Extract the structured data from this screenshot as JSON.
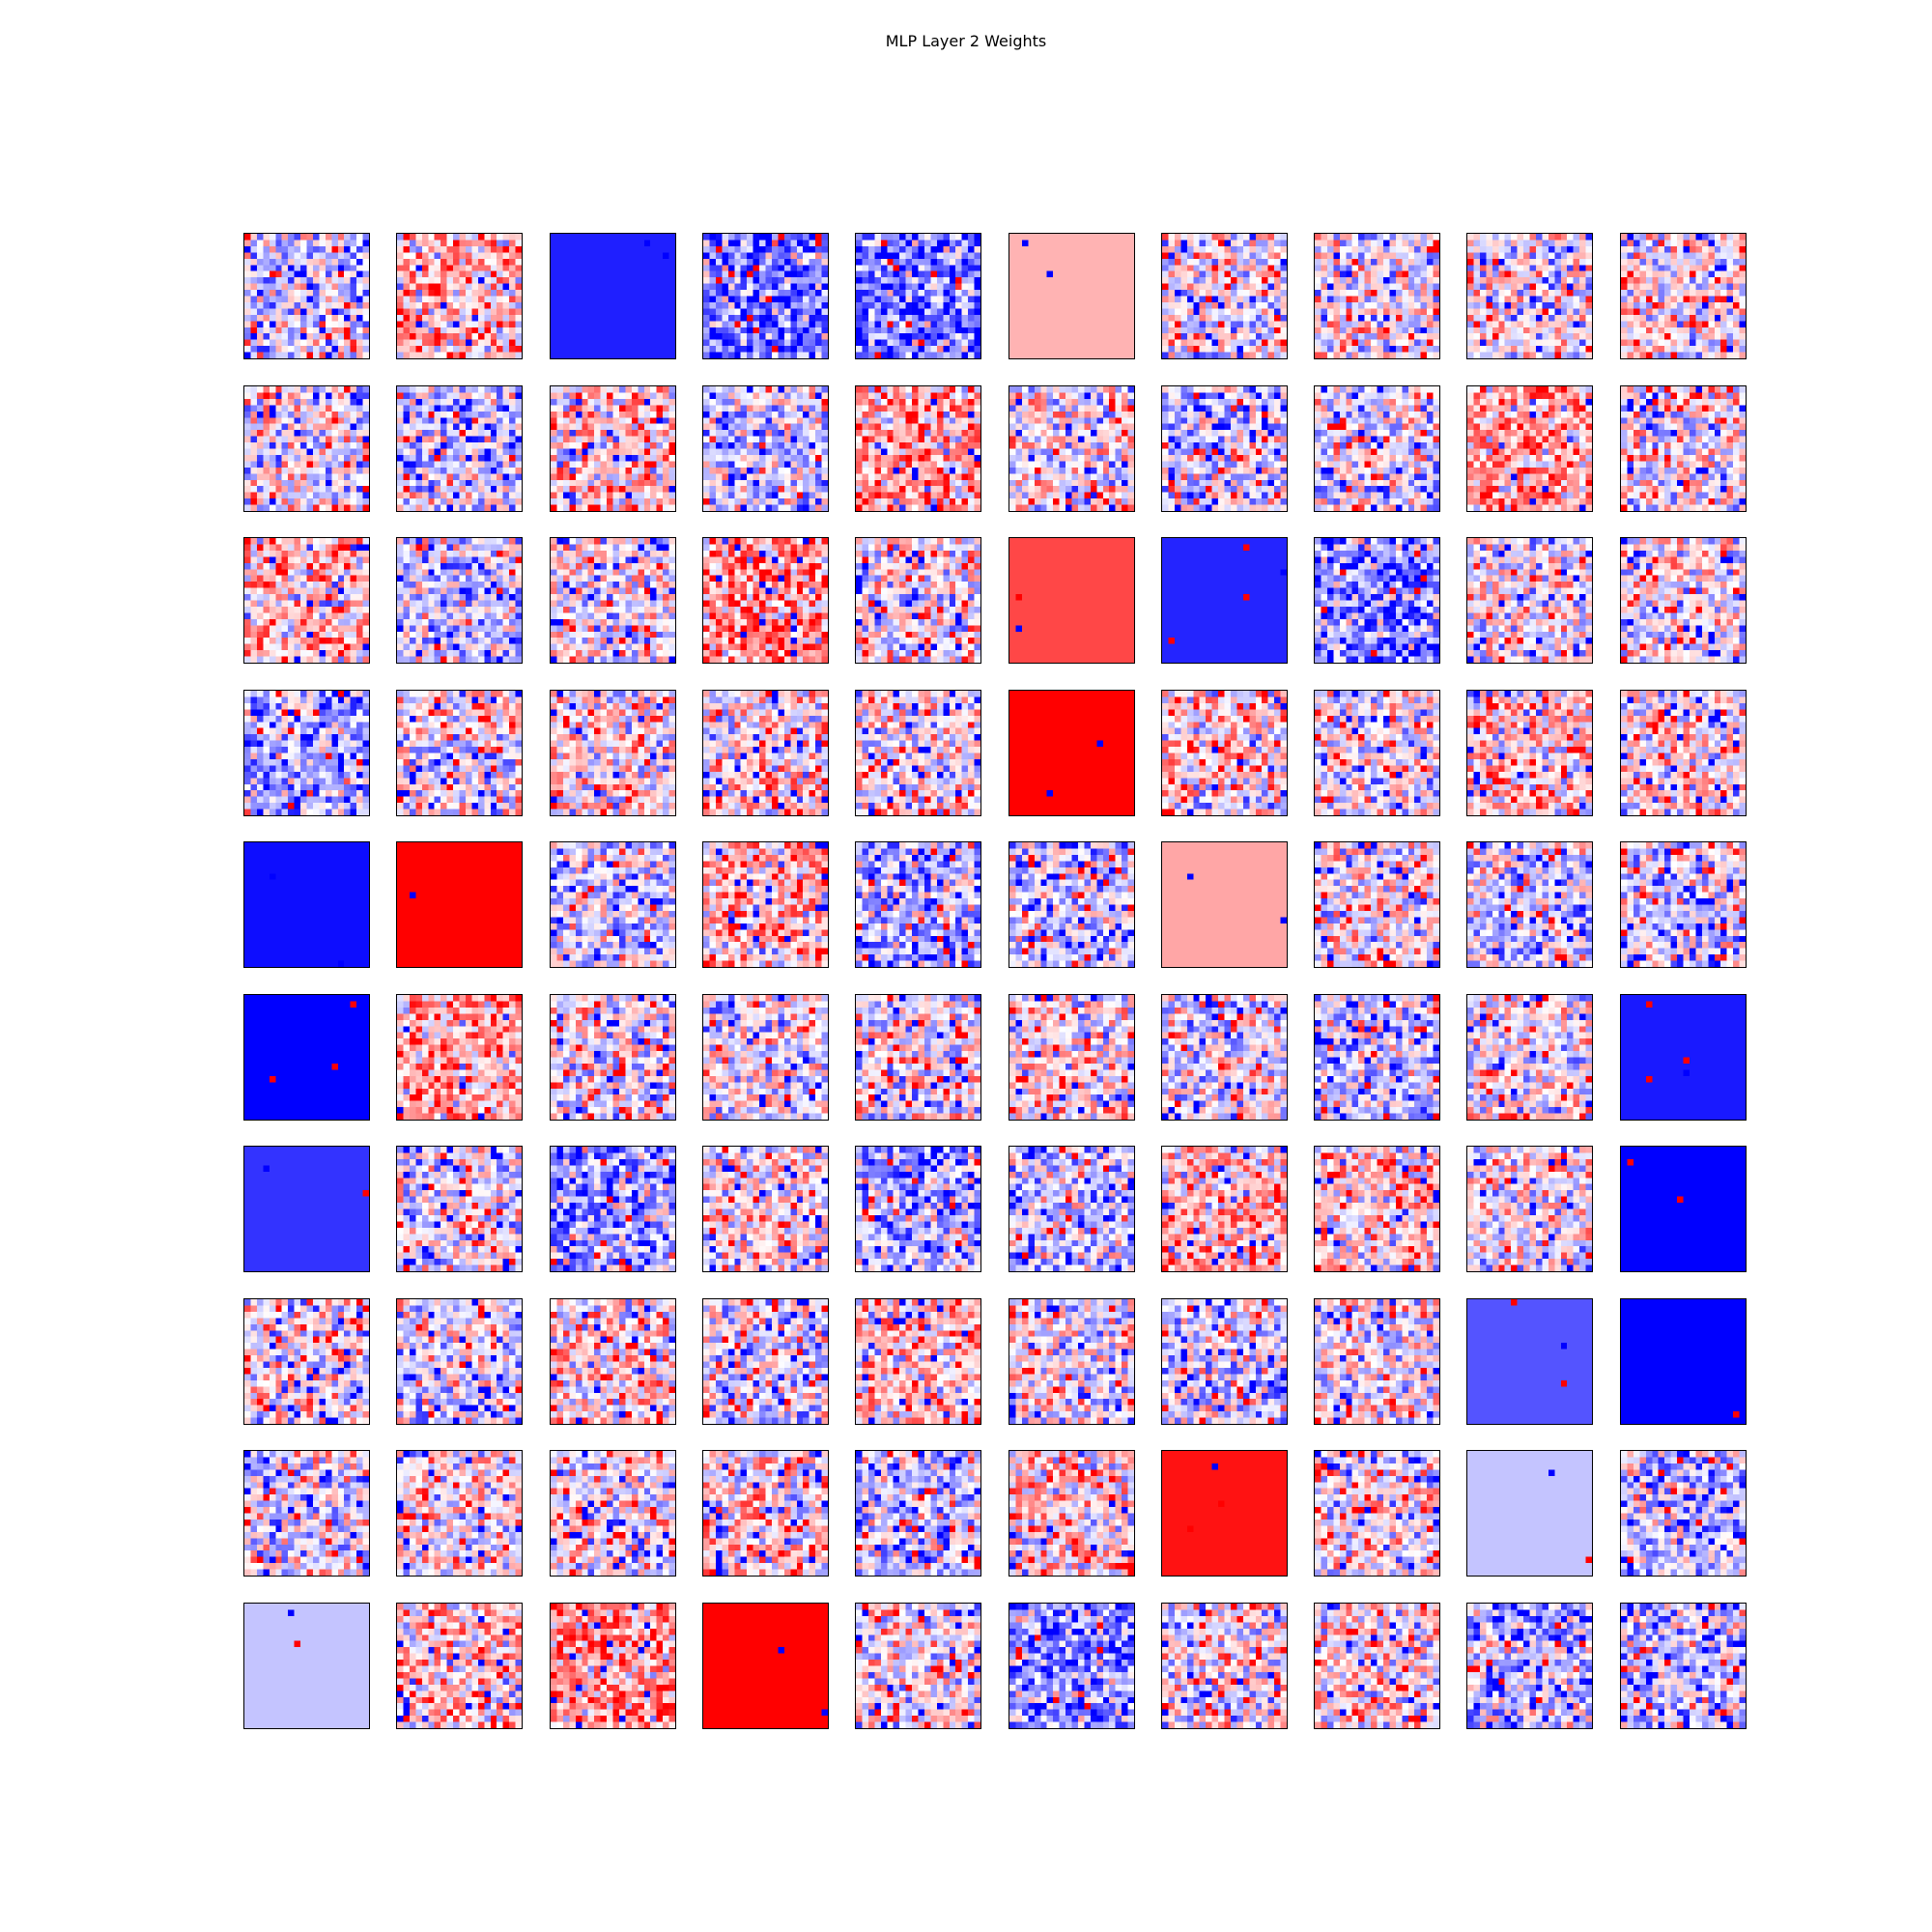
{
  "figure": {
    "title": "MLP Layer 2 Weights"
  },
  "chart_data": {
    "type": "heatmap",
    "title": "MLP Layer 2 Weights",
    "layout": {
      "rows": 10,
      "cols": 10
    },
    "colormap": "bwr",
    "colors": {
      "negative": "#0000ff",
      "zero": "#ffffff",
      "positive": "#ff0000"
    },
    "axes_visible": false,
    "pixels_per_panel": "20x20",
    "panels": [
      {
        "mode": "noise",
        "bias": -0.15
      },
      {
        "mode": "noise",
        "bias": 0.25
      },
      {
        "mode": "solid",
        "value": -0.88
      },
      {
        "mode": "noise",
        "bias": -0.55
      },
      {
        "mode": "noise",
        "bias": -0.5
      },
      {
        "mode": "solid",
        "value": 0.3
      },
      {
        "mode": "noise",
        "bias": -0.05
      },
      {
        "mode": "noise",
        "bias": 0.0
      },
      {
        "mode": "noise",
        "bias": 0.0
      },
      {
        "mode": "noise",
        "bias": 0.05
      },
      {
        "mode": "noise",
        "bias": 0.0
      },
      {
        "mode": "noise",
        "bias": -0.2
      },
      {
        "mode": "noise",
        "bias": 0.15
      },
      {
        "mode": "noise",
        "bias": -0.2
      },
      {
        "mode": "noise",
        "bias": 0.3
      },
      {
        "mode": "noise",
        "bias": 0.0
      },
      {
        "mode": "noise",
        "bias": -0.1
      },
      {
        "mode": "noise",
        "bias": -0.05
      },
      {
        "mode": "noise",
        "bias": 0.35
      },
      {
        "mode": "noise",
        "bias": 0.0
      },
      {
        "mode": "noise",
        "bias": 0.2
      },
      {
        "mode": "noise",
        "bias": -0.15
      },
      {
        "mode": "noise",
        "bias": 0.0
      },
      {
        "mode": "noise",
        "bias": 0.4
      },
      {
        "mode": "noise",
        "bias": 0.0
      },
      {
        "mode": "solid",
        "value": 0.72
      },
      {
        "mode": "solid",
        "value": -0.86
      },
      {
        "mode": "noise",
        "bias": -0.45
      },
      {
        "mode": "noise",
        "bias": 0.0
      },
      {
        "mode": "noise",
        "bias": 0.05
      },
      {
        "mode": "noise",
        "bias": -0.35
      },
      {
        "mode": "noise",
        "bias": 0.0
      },
      {
        "mode": "noise",
        "bias": 0.1
      },
      {
        "mode": "noise",
        "bias": 0.05
      },
      {
        "mode": "noise",
        "bias": 0.0
      },
      {
        "mode": "solid",
        "value": 1.0
      },
      {
        "mode": "noise",
        "bias": 0.1
      },
      {
        "mode": "noise",
        "bias": 0.0
      },
      {
        "mode": "noise",
        "bias": 0.15
      },
      {
        "mode": "noise",
        "bias": 0.05
      },
      {
        "mode": "solid",
        "value": -0.95
      },
      {
        "mode": "solid",
        "value": 1.0
      },
      {
        "mode": "noise",
        "bias": -0.2
      },
      {
        "mode": "noise",
        "bias": 0.2
      },
      {
        "mode": "noise",
        "bias": -0.3
      },
      {
        "mode": "noise",
        "bias": -0.15
      },
      {
        "mode": "solid",
        "value": 0.35
      },
      {
        "mode": "noise",
        "bias": 0.05
      },
      {
        "mode": "noise",
        "bias": -0.2
      },
      {
        "mode": "noise",
        "bias": -0.1
      },
      {
        "mode": "solid",
        "value": -1.0
      },
      {
        "mode": "noise",
        "bias": 0.3
      },
      {
        "mode": "noise",
        "bias": 0.0
      },
      {
        "mode": "noise",
        "bias": 0.0
      },
      {
        "mode": "noise",
        "bias": 0.0
      },
      {
        "mode": "noise",
        "bias": 0.05
      },
      {
        "mode": "noise",
        "bias": -0.05
      },
      {
        "mode": "noise",
        "bias": -0.2
      },
      {
        "mode": "noise",
        "bias": 0.0
      },
      {
        "mode": "solid",
        "value": -0.9
      },
      {
        "mode": "solid",
        "value": -0.8
      },
      {
        "mode": "noise",
        "bias": 0.0
      },
      {
        "mode": "noise",
        "bias": -0.4
      },
      {
        "mode": "noise",
        "bias": 0.05
      },
      {
        "mode": "noise",
        "bias": -0.3
      },
      {
        "mode": "noise",
        "bias": -0.2
      },
      {
        "mode": "noise",
        "bias": 0.25
      },
      {
        "mode": "noise",
        "bias": 0.1
      },
      {
        "mode": "noise",
        "bias": 0.0
      },
      {
        "mode": "solid",
        "value": -1.0
      },
      {
        "mode": "noise",
        "bias": 0.0
      },
      {
        "mode": "noise",
        "bias": -0.1
      },
      {
        "mode": "noise",
        "bias": 0.1
      },
      {
        "mode": "noise",
        "bias": -0.1
      },
      {
        "mode": "noise",
        "bias": 0.2
      },
      {
        "mode": "noise",
        "bias": 0.0
      },
      {
        "mode": "noise",
        "bias": -0.15
      },
      {
        "mode": "noise",
        "bias": 0.0
      },
      {
        "mode": "solid",
        "value": -0.67
      },
      {
        "mode": "solid",
        "value": -1.0
      },
      {
        "mode": "noise",
        "bias": -0.1
      },
      {
        "mode": "noise",
        "bias": 0.05
      },
      {
        "mode": "noise",
        "bias": 0.0
      },
      {
        "mode": "noise",
        "bias": 0.1
      },
      {
        "mode": "noise",
        "bias": -0.2
      },
      {
        "mode": "noise",
        "bias": 0.15
      },
      {
        "mode": "solid",
        "value": 0.93
      },
      {
        "mode": "noise",
        "bias": 0.0
      },
      {
        "mode": "solid",
        "value": -0.23
      },
      {
        "mode": "noise",
        "bias": -0.25
      },
      {
        "mode": "solid",
        "value": -0.23
      },
      {
        "mode": "noise",
        "bias": 0.15
      },
      {
        "mode": "noise",
        "bias": 0.4
      },
      {
        "mode": "solid",
        "value": 1.0
      },
      {
        "mode": "noise",
        "bias": 0.0
      },
      {
        "mode": "noise",
        "bias": -0.45
      },
      {
        "mode": "noise",
        "bias": 0.0
      },
      {
        "mode": "noise",
        "bias": 0.05
      },
      {
        "mode": "noise",
        "bias": -0.3
      },
      {
        "mode": "noise",
        "bias": -0.2
      }
    ]
  }
}
